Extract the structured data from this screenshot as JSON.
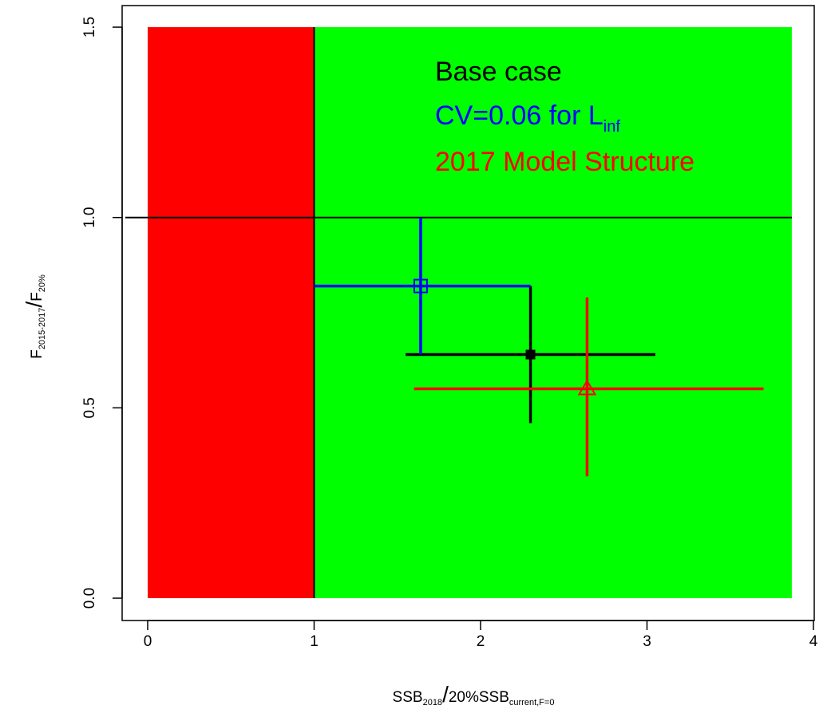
{
  "chart_data": {
    "type": "scatter",
    "xlim": [
      0,
      4
    ],
    "ylim": [
      0,
      1.5
    ],
    "x_ticks": [
      0,
      1,
      2,
      3,
      4
    ],
    "y_ticks": [
      0.0,
      0.5,
      1.0,
      1.5
    ],
    "x_tick_labels": [
      "0",
      "1",
      "2",
      "3",
      "4"
    ],
    "y_tick_labels": [
      "0.0",
      "0.5",
      "1.0",
      "1.5"
    ],
    "xlabel": {
      "main": "SSB",
      "sub1": "2018",
      "slash": "/",
      "mid": "20%SSB",
      "sub2": "current,F=0"
    },
    "ylabel": {
      "main1": "F",
      "sub1": "2015-2017",
      "slash": "/",
      "main2": "F",
      "sub2": "20%"
    },
    "regions": [
      {
        "name": "red-zone",
        "x": [
          0,
          1
        ],
        "y": [
          0,
          1.5
        ],
        "color": "#ff0000"
      },
      {
        "name": "green-zone",
        "x": [
          1,
          3.87
        ],
        "y": [
          0,
          1.5
        ],
        "color": "#00ff00"
      }
    ],
    "reference_lines": {
      "x": 1,
      "y": 1
    },
    "series": [
      {
        "name": "Base case",
        "color": "#000000",
        "marker": "filled-square",
        "x": 2.3,
        "y": 0.64,
        "x_range": [
          1.55,
          3.05
        ],
        "y_range": [
          0.46,
          0.82
        ]
      },
      {
        "name": "CV=0.06 for L",
        "name_sub": "inf",
        "color": "#0000ff",
        "marker": "open-square",
        "x": 1.64,
        "y": 0.82,
        "x_range": [
          1.0,
          2.3
        ],
        "y_range": [
          0.64,
          1.0
        ]
      },
      {
        "name": "2017 Model Structure",
        "color": "#ff0000",
        "marker": "open-triangle",
        "x": 2.64,
        "y": 0.55,
        "x_range": [
          1.6,
          3.7
        ],
        "y_range": [
          0.32,
          0.79
        ]
      }
    ],
    "legend_placement": "top-right",
    "grid": false
  }
}
